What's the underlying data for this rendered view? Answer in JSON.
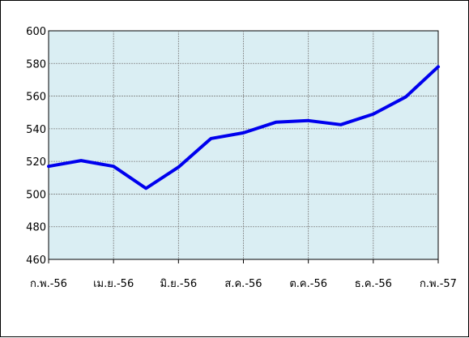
{
  "chart_data": {
    "type": "line",
    "title": "",
    "xlabel": "",
    "ylabel": "",
    "x_tick_labels": [
      "ก.พ.-56",
      "เม.ย.-56",
      "มิ.ย.-56",
      "ส.ค.-56",
      "ต.ค.-56",
      "ธ.ค.-56",
      "ก.พ.-57"
    ],
    "x": [
      "ก.พ.-56",
      "มี.ค.-56",
      "เม.ย.-56",
      "พ.ค.-56",
      "มิ.ย.-56",
      "ก.ค.-56",
      "ส.ค.-56",
      "ก.ย.-56",
      "ต.ค.-56",
      "พ.ย.-56",
      "ธ.ค.-56",
      "ม.ค.-57",
      "ก.พ.-57"
    ],
    "series": [
      {
        "values": [
          517,
          520.5,
          517,
          503.5,
          516.5,
          534,
          537.5,
          544,
          545,
          542.5,
          549,
          559.5,
          578
        ]
      }
    ],
    "ylim": [
      460,
      600
    ],
    "y_ticks": [
      460,
      480,
      500,
      520,
      540,
      560,
      580,
      600
    ],
    "grid": true,
    "legend": "none",
    "colors": {
      "line": "#0000ee",
      "plot_background": "#daeef3",
      "grid": "#808080"
    }
  }
}
